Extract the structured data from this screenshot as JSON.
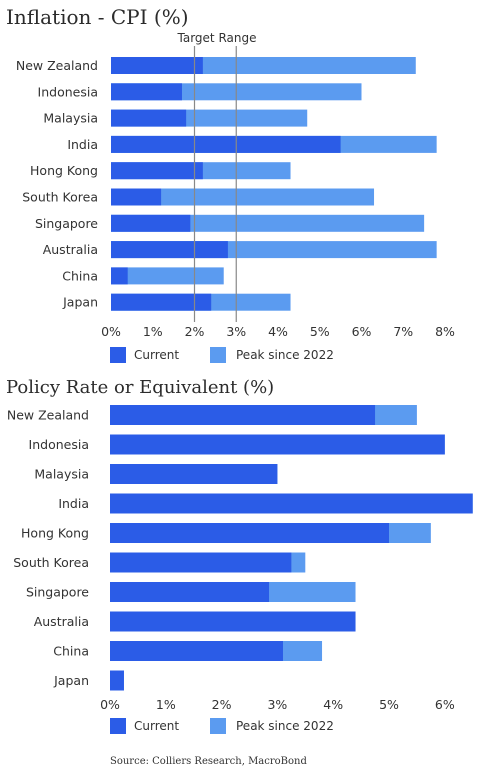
{
  "colors": {
    "current": "#2b5ce7",
    "peak": "#5b9bf0",
    "ref_line": "#888888"
  },
  "chart_data": [
    {
      "type": "bar",
      "title": "Inflation - CPI (%)",
      "annotation": "Target Range",
      "target_range": [
        2,
        3
      ],
      "categories": [
        "New Zealand",
        "Indonesia",
        "Malaysia",
        "India",
        "Hong Kong",
        "South Korea",
        "Singapore",
        "Australia",
        "China",
        "Japan"
      ],
      "series": [
        {
          "name": "Current",
          "values": [
            2.2,
            1.7,
            1.8,
            5.5,
            2.2,
            1.2,
            1.9,
            2.8,
            0.4,
            2.4
          ]
        },
        {
          "name": "Peak since 2022",
          "values": [
            7.3,
            6.0,
            4.7,
            7.8,
            4.3,
            6.3,
            7.5,
            7.8,
            2.7,
            4.3
          ]
        }
      ],
      "ticks": [
        "0%",
        "1%",
        "2%",
        "3%",
        "4%",
        "5%",
        "6%",
        "7%",
        "8%"
      ],
      "xlim": [
        0,
        8
      ],
      "legend": [
        "Current",
        "Peak since 2022"
      ]
    },
    {
      "type": "bar",
      "title": "Policy Rate or Equivalent (%)",
      "categories": [
        "New Zealand",
        "Indonesia",
        "Malaysia",
        "India",
        "Hong Kong",
        "South Korea",
        "Singapore",
        "Australia",
        "China",
        "Japan"
      ],
      "series": [
        {
          "name": "Current",
          "values": [
            4.75,
            6.0,
            3.0,
            6.5,
            5.0,
            3.25,
            2.85,
            4.4,
            3.1,
            0.25
          ]
        },
        {
          "name": "Peak since 2022",
          "values": [
            5.5,
            6.0,
            3.0,
            6.5,
            5.75,
            3.5,
            4.4,
            4.4,
            3.8,
            0.25
          ]
        }
      ],
      "ticks": [
        "0%",
        "1%",
        "2%",
        "3%",
        "4%",
        "5%",
        "6%"
      ],
      "xlim": [
        0,
        6.5
      ],
      "legend": [
        "Current",
        "Peak since 2022"
      ]
    }
  ],
  "source": "Source: Colliers Research, MacroBond"
}
